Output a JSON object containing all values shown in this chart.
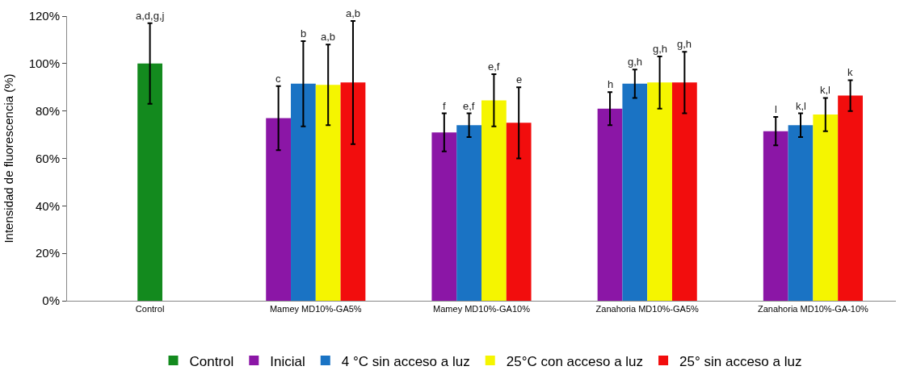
{
  "chart_data": {
    "type": "bar",
    "ylabel": "Intensidad de fluorescencia (%)",
    "categories": [
      "Control",
      "Mamey MD10%-GA5%",
      "Mamey MD10%-GA10%",
      "Zanahoria MD10%-GA5%",
      "Zanahoria MD10%-GA-10%"
    ],
    "series": [
      {
        "name": "Control",
        "color": "#138a1e",
        "values": [
          100,
          null,
          null,
          null,
          null
        ],
        "errors": [
          17,
          null,
          null,
          null,
          null
        ]
      },
      {
        "name": "Inicial",
        "color": "#8b16a6",
        "values": [
          null,
          77,
          71,
          81,
          71.5
        ],
        "errors": [
          null,
          13.5,
          8,
          7,
          6
        ]
      },
      {
        "name": "4 °C sin acceso a luz",
        "color": "#1a73c4",
        "values": [
          null,
          91.5,
          74,
          91.5,
          74
        ],
        "errors": [
          null,
          18,
          5,
          6,
          5
        ]
      },
      {
        "name": "25°C con acceso a luz",
        "color": "#f5f500",
        "values": [
          null,
          91,
          84.5,
          92,
          78.5
        ],
        "errors": [
          null,
          17,
          11,
          11,
          7
        ]
      },
      {
        "name": "25° sin acceso a luz",
        "color": "#f20d0d",
        "values": [
          null,
          92,
          75,
          92,
          86.5
        ],
        "errors": [
          null,
          26,
          15,
          13,
          6.5
        ]
      }
    ],
    "annotations": [
      "a,d,g,j",
      "c",
      "b",
      "a,b",
      "a,b",
      "f",
      "e,f",
      "e,f",
      "e",
      "h",
      "g,h",
      "g,h",
      "g,h",
      "l",
      "k,l",
      "k,l",
      "k"
    ],
    "grid": false,
    "ylim": [
      0,
      120
    ],
    "yticks": [
      {
        "value": 0,
        "label": "0%"
      },
      {
        "value": 20,
        "label": "20%"
      },
      {
        "value": 40,
        "label": "40%"
      },
      {
        "value": 60,
        "label": "60%"
      },
      {
        "value": 80,
        "label": "80%"
      },
      {
        "value": 100,
        "label": "100%"
      },
      {
        "value": 120,
        "label": "120%"
      }
    ],
    "legend": "bottom"
  }
}
